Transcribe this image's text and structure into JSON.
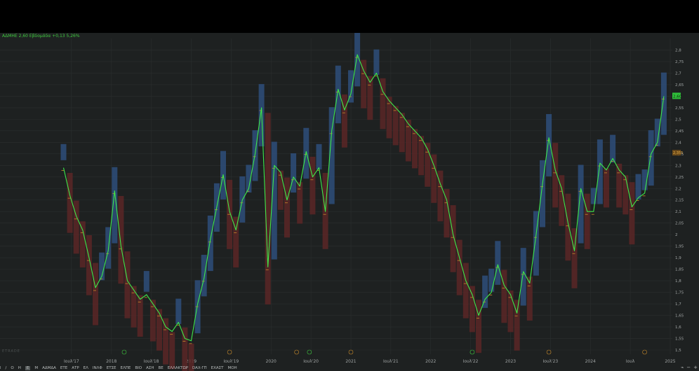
{
  "header": {
    "ticker": "ΑΔΜΗΕ",
    "price": "2,60",
    "period": "Εβδομάδα",
    "change": "+0,13",
    "change_pct": "5,26%"
  },
  "watermark": "ETRADE",
  "price_tags": {
    "last": "2,60",
    "marker": "2,355"
  },
  "toolbar": {
    "items": [
      "l",
      "/",
      "Ο",
      "Η",
      "Ε",
      "Μ",
      "ΑΔΜΔΑ",
      "ΕΤΕ",
      "ΑΤΡ",
      "ΕΛ",
      "ΙΝΛΦ",
      "ΕΤΣΕ",
      "ΕΛΠΕ",
      "ΒΙΟ",
      "ΑΣΗ",
      "ΒΕ",
      "ΕΛΛΑΚΤΩΡ",
      "DAX-ΓΠ",
      "ΕΧΑΣΤ",
      "ΜΟΗ"
    ],
    "active_index": 4,
    "right_icons": [
      "chart-type-icon",
      "minus-icon",
      "plus-icon"
    ]
  },
  "colors": {
    "background": "#1e2121",
    "line": "#3ee84a",
    "up_box": "#2e4d7a",
    "down_box": "#5a2626",
    "grid": "#2b2f2f",
    "axis_text": "#9fa3a3"
  },
  "chart_data": {
    "type": "line",
    "title": "",
    "xlabel": "",
    "ylabel": "",
    "ylim": [
      1.5,
      2.85
    ],
    "y_ticks": [
      "1,5",
      "1,55",
      "1,6",
      "1,65",
      "1,7",
      "1,75",
      "1,8",
      "1,85",
      "1,9",
      "1,95",
      "2",
      "2,05",
      "2,1",
      "2,15",
      "2,2",
      "2,25",
      "2,3",
      "2,35",
      "2,4",
      "2,45",
      "2,5",
      "2,55",
      "2,6",
      "2,65",
      "2,7",
      "2,75",
      "2,8"
    ],
    "x_labels": [
      "Ιουλ'17",
      "2018",
      "Ιουλ'18",
      "2019",
      "Ιουλ'19",
      "2020",
      "Ιουλ'20",
      "2021",
      "Ιουλ'21",
      "2022",
      "Ιουλ'22",
      "2023",
      "Ιουλ'23",
      "2024",
      "Ιουλ",
      "2025"
    ],
    "x_label_dates": [
      2017.5,
      2018.0,
      2018.5,
      2019.0,
      2019.5,
      2020.0,
      2020.5,
      2021.0,
      2021.5,
      2022.0,
      2022.5,
      2023.0,
      2023.5,
      2024.0,
      2024.5,
      2025.0
    ],
    "xlim": [
      2017.0,
      2025.0
    ],
    "x": [
      2017.4,
      2017.48,
      2017.56,
      2017.64,
      2017.72,
      2017.8,
      2017.88,
      2017.96,
      2018.04,
      2018.12,
      2018.2,
      2018.28,
      2018.36,
      2018.44,
      2018.52,
      2018.6,
      2018.68,
      2018.76,
      2018.84,
      2018.92,
      2019.0,
      2019.08,
      2019.16,
      2019.24,
      2019.32,
      2019.4,
      2019.48,
      2019.56,
      2019.64,
      2019.72,
      2019.8,
      2019.88,
      2019.96,
      2020.04,
      2020.12,
      2020.2,
      2020.28,
      2020.36,
      2020.44,
      2020.52,
      2020.6,
      2020.68,
      2020.76,
      2020.84,
      2020.92,
      2021.0,
      2021.08,
      2021.16,
      2021.24,
      2021.32,
      2021.4,
      2021.48,
      2021.56,
      2021.64,
      2021.72,
      2021.8,
      2021.88,
      2021.96,
      2022.04,
      2022.12,
      2022.2,
      2022.28,
      2022.36,
      2022.44,
      2022.52,
      2022.6,
      2022.68,
      2022.76,
      2022.84,
      2022.92,
      2023.0,
      2023.08,
      2023.16,
      2023.24,
      2023.32,
      2023.4,
      2023.48,
      2023.56,
      2023.64,
      2023.72,
      2023.8,
      2023.88,
      2023.96,
      2024.04,
      2024.12,
      2024.2,
      2024.28,
      2024.36,
      2024.44,
      2024.52,
      2024.6,
      2024.68,
      2024.76,
      2024.84,
      2024.92
    ],
    "series": [
      {
        "name": "",
        "values": [
          2.29,
          2.17,
          2.08,
          2.02,
          1.9,
          1.77,
          1.82,
          1.93,
          2.19,
          1.95,
          1.8,
          1.76,
          1.72,
          1.74,
          1.7,
          1.66,
          1.6,
          1.58,
          1.62,
          1.55,
          1.54,
          1.7,
          1.81,
          1.98,
          2.12,
          2.26,
          2.1,
          2.02,
          2.15,
          2.2,
          2.35,
          2.55,
          1.86,
          2.3,
          2.27,
          2.15,
          2.25,
          2.21,
          2.36,
          2.25,
          2.29,
          2.1,
          2.45,
          2.63,
          2.54,
          2.61,
          2.78,
          2.71,
          2.66,
          2.7,
          2.62,
          2.58,
          2.55,
          2.52,
          2.48,
          2.45,
          2.42,
          2.37,
          2.3,
          2.22,
          2.15,
          2.0,
          1.9,
          1.8,
          1.74,
          1.65,
          1.72,
          1.75,
          1.87,
          1.78,
          1.74,
          1.66,
          1.84,
          1.79,
          2.0,
          2.22,
          2.42,
          2.28,
          2.2,
          2.05,
          1.93,
          2.2,
          2.1,
          2.1,
          2.31,
          2.28,
          2.33,
          2.28,
          2.25,
          2.12,
          2.16,
          2.18,
          2.35,
          2.4,
          2.6
        ]
      }
    ]
  }
}
